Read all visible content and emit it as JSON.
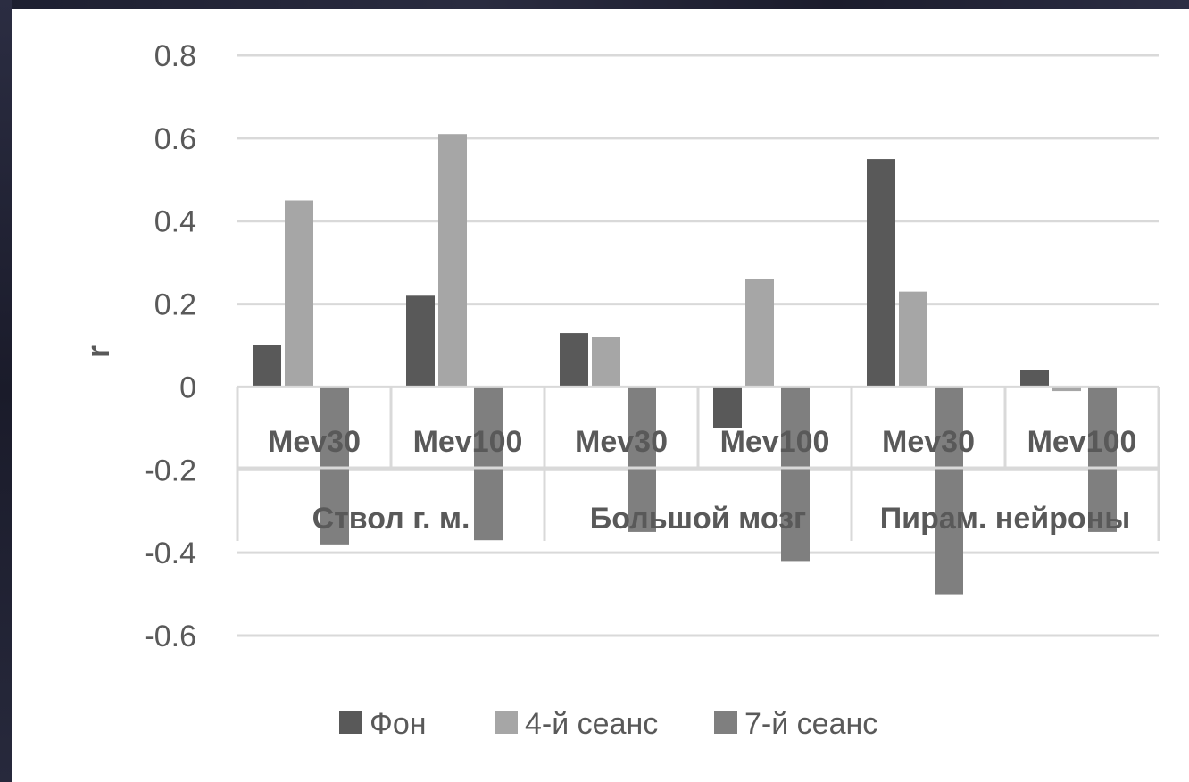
{
  "chart_data": {
    "type": "bar",
    "title": "",
    "ylabel": "r",
    "xlabel": "",
    "ylim": [
      -0.6,
      0.8
    ],
    "yticks": [
      0.8,
      0.6,
      0.4,
      0.2,
      0,
      -0.2,
      -0.4,
      -0.6
    ],
    "y_tick_labels": [
      "0.8",
      "0.6",
      "0.4",
      "0.2",
      "0",
      "-0.2",
      "-0.4",
      "-0.6"
    ],
    "grid": true,
    "legend_position": "bottom",
    "categories": [
      "Mev30",
      "Mev100",
      "Mev30",
      "Mev100",
      "Mev30",
      "Mev100"
    ],
    "groups": [
      {
        "label": "Ствол г. м.",
        "span": 2
      },
      {
        "label": "Большой мозг",
        "span": 2
      },
      {
        "label": "Пирам. нейроны",
        "span": 2
      }
    ],
    "series": [
      {
        "name": "Фон",
        "color": "#595959",
        "values": [
          0.1,
          0.22,
          0.13,
          -0.1,
          0.55,
          0.04
        ]
      },
      {
        "name": "4-й сеанс",
        "color": "#a6a6a6",
        "values": [
          0.45,
          0.61,
          0.12,
          0.26,
          0.23,
          -0.01
        ]
      },
      {
        "name": "7-й сеанс",
        "color": "#7f7f7f",
        "values": [
          -0.38,
          -0.37,
          -0.35,
          -0.42,
          -0.5,
          -0.35
        ]
      }
    ]
  }
}
